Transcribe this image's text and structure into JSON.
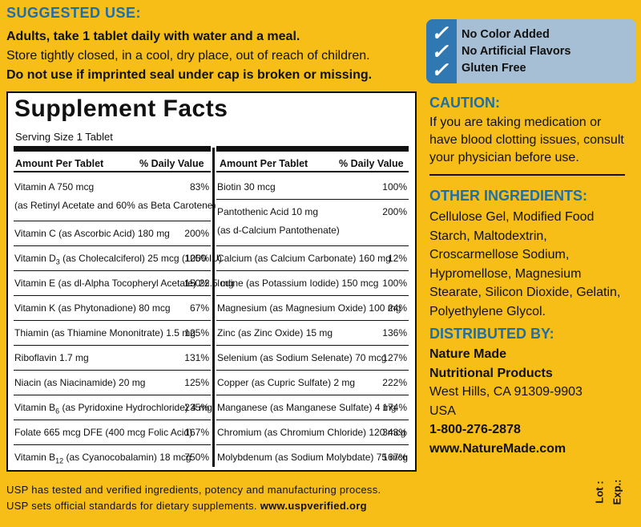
{
  "suggested_use": {
    "title": "SUGGESTED USE:",
    "line1": "Adults, take 1 tablet daily with water and a meal.",
    "line2": "Store tightly closed, in a cool, dry place, out of reach of children.",
    "line3": "Do not use if imprinted seal under cap is broken or missing."
  },
  "badges": [
    "No Color Added",
    "No Artificial Flavors",
    "Gluten Free"
  ],
  "facts": {
    "title": "Supplement Facts",
    "serving": "Serving Size 1 Tablet",
    "left_header": {
      "amount": "Amount Per Tablet",
      "dv": "% Daily Value"
    },
    "right_header": {
      "amount": "Amount Per Tablet",
      "dv": "% Daily Value"
    },
    "left": [
      {
        "name": "Vitamin A  750 mcg",
        "sub": "(as Retinyl Acetate and 60% as Beta Carotene)",
        "dv": "83%"
      },
      {
        "name": "Vitamin C (as Ascorbic Acid)  180 mg",
        "dv": "200%"
      },
      {
        "name": "Vitamin D3 (as Cholecalciferol)  25 mcg (1000 IU)",
        "dv": "125%"
      },
      {
        "name": "Vitamin E (as dl-Alpha Tocopheryl Acetate)  22.5 mg",
        "dv": "150%"
      },
      {
        "name": "Vitamin K (as Phytonadione)  80 mcg",
        "dv": "67%"
      },
      {
        "name": "Thiamin (as Thiamine Mononitrate)  1.5 mg",
        "dv": "125%"
      },
      {
        "name": "Riboflavin  1.7 mg",
        "dv": "131%"
      },
      {
        "name": "Niacin (as Niacinamide)  20 mg",
        "dv": "125%"
      },
      {
        "name": "Vitamin B6 (as Pyridoxine Hydrochloride)  4 mg",
        "dv": "235%"
      },
      {
        "name": "Folate  665 mcg DFE (400 mcg Folic Acid)",
        "dv": "167%"
      },
      {
        "name": "Vitamin B12 (as Cyanocobalamin)  18 mcg",
        "dv": "750%"
      }
    ],
    "right": [
      {
        "name": "Biotin  30 mcg",
        "dv": "100%"
      },
      {
        "name": "Pantothenic Acid  10 mg",
        "sub": "(as d-Calcium Pantothenate)",
        "dv": "200%"
      },
      {
        "name": "Calcium (as Calcium Carbonate)  160 mg",
        "dv": "12%"
      },
      {
        "name": "Iodine (as Potassium Iodide)  150 mcg",
        "dv": "100%"
      },
      {
        "name": "Magnesium (as Magnesium Oxide)  100 mg",
        "dv": "24%"
      },
      {
        "name": "Zinc (as Zinc Oxide)  15 mg",
        "dv": "136%"
      },
      {
        "name": "Selenium (as Sodium Selenate)  70 mcg",
        "dv": "127%"
      },
      {
        "name": "Copper (as Cupric Sulfate)  2 mg",
        "dv": "222%"
      },
      {
        "name": "Manganese (as Manganese Sulfate)  4 mg",
        "dv": "174%"
      },
      {
        "name": "Chromium (as Chromium Chloride)  120 mcg",
        "dv": "343%"
      },
      {
        "name": "Molybdenum (as Sodium Molybdate)  75 mcg",
        "dv": "167%"
      }
    ]
  },
  "caution": {
    "title": "CAUTION:",
    "lines": [
      "If you are taking medication or",
      "have blood clotting issues, consult",
      "your physician before use."
    ]
  },
  "other_ingredients": {
    "title": "OTHER INGREDIENTS:",
    "lines": [
      "Cellulose Gel, Modified Food",
      "Starch, Maltodextrin,",
      "Croscarmellose Sodium,",
      "Hypromellose, Magnesium",
      "Stearate, Silicon Dioxide, Gelatin,",
      "Polyethylene Glycol."
    ]
  },
  "distributed": {
    "title": "DISTRIBUTED BY:",
    "name1": "Nature Made",
    "name2": "Nutritional Products",
    "city": "West Hills, CA 91309-9903",
    "country": "USA",
    "phone": "1-800-276-2878",
    "web": "www.NatureMade.com"
  },
  "footer": {
    "line1": "USP has tested and verified ingredients, potency and manufacturing process.",
    "line2_text": "USP sets official standards for dietary supplements. ",
    "line2_link": "www.uspverified.org"
  },
  "lot": {
    "lot": "Lot :",
    "exp": "Exp.:"
  },
  "colors": {
    "background": "#F6BE17",
    "accent_blue": "#1E6FA8",
    "badge_band": "#2F78B2",
    "badge_bg": "#A7BFD4"
  }
}
